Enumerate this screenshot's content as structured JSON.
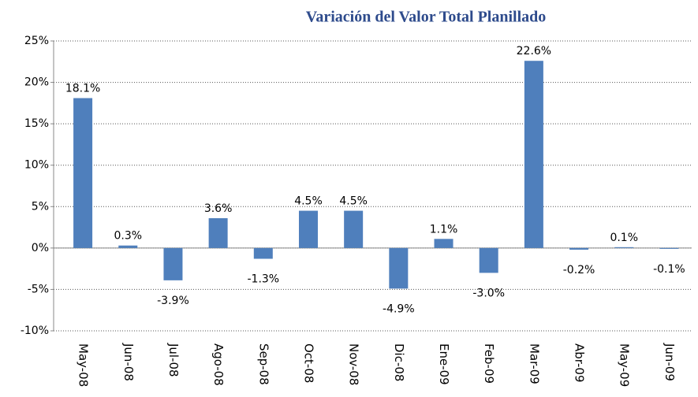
{
  "chart_data": {
    "type": "bar",
    "title": "Variación del Valor Total Planillado",
    "categories": [
      "May-08",
      "Jun-08",
      "Jul-08",
      "Ago-08",
      "Sep-08",
      "Oct-08",
      "Nov-08",
      "Dic-08",
      "Ene-09",
      "Feb-09",
      "Mar-09",
      "Abr-09",
      "May-09",
      "Jun-09"
    ],
    "values": [
      18.1,
      0.3,
      -3.9,
      3.6,
      -1.3,
      4.5,
      4.5,
      -4.9,
      1.1,
      -3.0,
      22.6,
      -0.2,
      0.1,
      -0.1
    ],
    "value_labels": [
      "18.1%",
      "0.3%",
      "-3.9%",
      "3.6%",
      "-1.3%",
      "4.5%",
      "4.5%",
      "-4.9%",
      "1.1%",
      "-3.0%",
      "22.6%",
      "-0.2%",
      "0.1%",
      "-0.1%"
    ],
    "color": "#4f7fbc",
    "ylim": [
      -10,
      25
    ],
    "yticks": [
      {
        "value": -10,
        "label": "-10%"
      },
      {
        "value": -5,
        "label": "-5%"
      },
      {
        "value": 0,
        "label": "0%"
      },
      {
        "value": 5,
        "label": "5%"
      },
      {
        "value": 10,
        "label": "10%"
      },
      {
        "value": 15,
        "label": "15%"
      },
      {
        "value": 20,
        "label": "20%"
      },
      {
        "value": 25,
        "label": "25%"
      }
    ],
    "grid": true
  }
}
